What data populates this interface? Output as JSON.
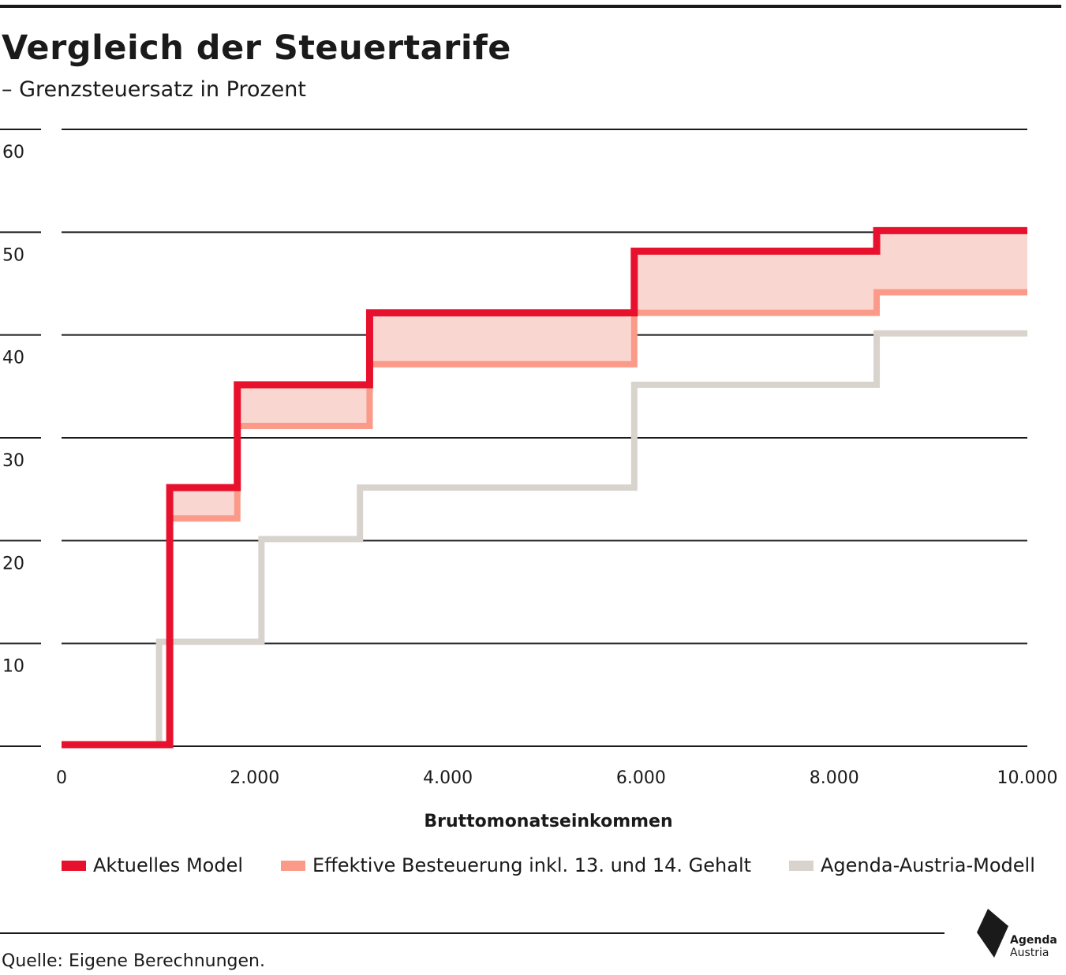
{
  "title": "Vergleich der Steuertarife",
  "subtitle": "– Grenzsteuersatz in Prozent",
  "source": "Quelle: Eigene Berechnungen.",
  "logo": {
    "line1": "Agenda",
    "line2": "Austria"
  },
  "colors": {
    "aktuell": "#e8112d",
    "effektiv": "#fb9a88",
    "band": "#f9d6cf",
    "agenda": "#d9d3ce",
    "grid": "#1a1a1a"
  },
  "chart_data": {
    "type": "line",
    "step": true,
    "xlabel": "Bruttomonatseinkommen",
    "ylabel": "",
    "xlim": [
      0,
      10000
    ],
    "ylim": [
      0,
      60
    ],
    "xticks": [
      0,
      2000,
      4000,
      6000,
      8000,
      10000
    ],
    "xtick_labels": [
      "0",
      "2.000",
      "4.000",
      "6.000",
      "8.000",
      "10.000"
    ],
    "yticks": [
      10,
      20,
      30,
      40,
      50,
      60
    ],
    "ytick_labels": [
      "10",
      "20",
      "30",
      "40",
      "50",
      "60"
    ],
    "grid": true,
    "legend_position": "bottom",
    "shaded_between": [
      "Aktuelles Model",
      "Effektive Besteuerung inkl. 13. und 14. Gehalt"
    ],
    "series": [
      {
        "name": "Aktuelles Model",
        "color": "#e8112d",
        "x": [
          0,
          1120,
          1120,
          1820,
          1820,
          3190,
          3190,
          5930,
          5930,
          8440,
          8440,
          10000
        ],
        "y": [
          0,
          0,
          25,
          25,
          35,
          35,
          42,
          42,
          48,
          48,
          50,
          50
        ]
      },
      {
        "name": "Effektive Besteuerung inkl. 13. und 14. Gehalt",
        "color": "#fb9a88",
        "x": [
          1120,
          1820,
          1820,
          3190,
          3190,
          5930,
          5930,
          8440,
          8440,
          10000
        ],
        "y": [
          22,
          22,
          31,
          31,
          37,
          37,
          42,
          42,
          44,
          44
        ]
      },
      {
        "name": "Agenda-Austria-Modell",
        "color": "#d9d3ce",
        "x": [
          1010,
          1010,
          2070,
          2070,
          3090,
          3090,
          5930,
          5930,
          8440,
          8440,
          10000
        ],
        "y": [
          0,
          10,
          10,
          20,
          20,
          25,
          25,
          35,
          35,
          40,
          40
        ]
      }
    ]
  }
}
